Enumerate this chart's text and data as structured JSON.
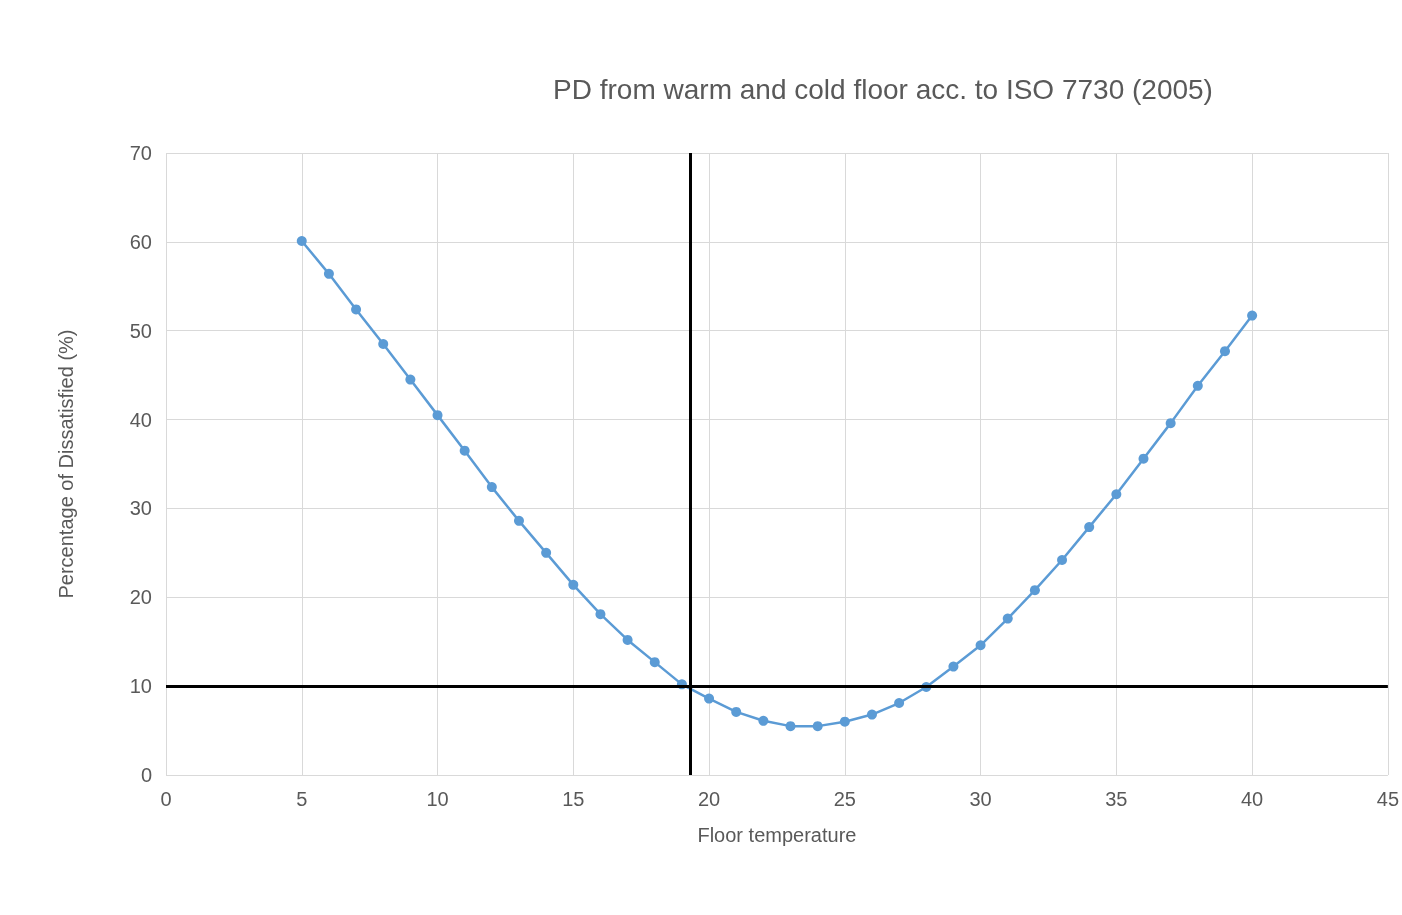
{
  "chart_data": {
    "type": "line",
    "title": "PD from warm and cold floor acc. to ISO 7730 (2005)",
    "xlabel": "Floor temperature",
    "ylabel": "Percentage of Dissatisfied (%)",
    "x": [
      5,
      6,
      7,
      8,
      9,
      10,
      11,
      12,
      13,
      14,
      15,
      16,
      17,
      18,
      19,
      20,
      21,
      22,
      23,
      24,
      25,
      26,
      27,
      28,
      29,
      30,
      31,
      32,
      33,
      34,
      35,
      36,
      37,
      38,
      39,
      40
    ],
    "series": [
      {
        "color": "#5b9bd5",
        "values": [
          60.1,
          56.4,
          52.4,
          48.5,
          44.5,
          40.5,
          36.5,
          32.4,
          28.6,
          25.0,
          21.4,
          18.1,
          15.2,
          12.7,
          10.2,
          8.6,
          7.1,
          6.1,
          5.5,
          5.5,
          6.0,
          6.8,
          8.1,
          9.9,
          12.2,
          14.6,
          17.6,
          20.8,
          24.2,
          27.9,
          31.6,
          35.6,
          39.6,
          43.8,
          47.7,
          51.7
        ]
      }
    ],
    "xlim": [
      0,
      45
    ],
    "xticks": [
      0,
      5,
      10,
      15,
      20,
      25,
      30,
      35,
      40,
      45
    ],
    "ylim": [
      0,
      70
    ],
    "yticks": [
      0,
      10,
      20,
      30,
      40,
      50,
      60,
      70
    ],
    "grid": true,
    "marker": "circle",
    "line_style": "solid",
    "ref_lines": [
      {
        "axis": "y",
        "value": 10,
        "color": "#000000",
        "line_style": "solid"
      },
      {
        "axis": "x",
        "value": 19.3,
        "color": "#000000",
        "line_style": "solid"
      }
    ]
  }
}
